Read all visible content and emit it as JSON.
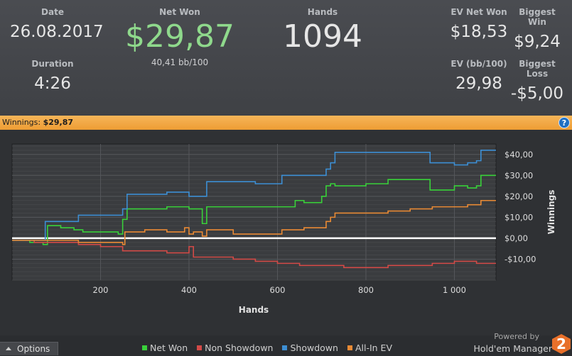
{
  "stats": {
    "date_label": "Date",
    "date_value": "26.08.2017",
    "duration_label": "Duration",
    "duration_value": "4:26",
    "net_won_label": "Net Won",
    "net_won_value": "$29,87",
    "net_won_sub": "40,41 bb/100",
    "hands_label": "Hands",
    "hands_value": "1094",
    "ev_net_won_label": "EV Net Won",
    "ev_net_won_value": "$18,53",
    "biggest_win_label": "Biggest Win",
    "biggest_win_value": "$9,24",
    "ev_bb_label": "EV (bb/100)",
    "ev_bb_value": "29,98",
    "biggest_loss_label": "Biggest Loss",
    "biggest_loss_value": "-$5,00"
  },
  "winbar": {
    "label": "Winnings:",
    "value": "$29,87",
    "help": "?"
  },
  "options": {
    "label": "Options"
  },
  "brand": {
    "powered": "Powered by",
    "name": "Hold'em Manager",
    "logo": "2"
  },
  "colors": {
    "net_won": "#39d13a",
    "non_showdown": "#d34a47",
    "showdown": "#3d8fd4",
    "allin_ev": "#e98a35"
  },
  "chart_data": {
    "type": "line",
    "xlabel": "Hands",
    "ylabel": "Winnings",
    "xlim": [
      0,
      1094
    ],
    "ylim": [
      -20,
      45
    ],
    "x_ticks": [
      200,
      400,
      600,
      800,
      1000
    ],
    "x_tick_labels": [
      "200",
      "400",
      "600",
      "800",
      "1 000"
    ],
    "y_ticks": [
      -10,
      0,
      10,
      20,
      30,
      40
    ],
    "y_tick_labels": [
      "-$10,00",
      "$0,00",
      "$10,00",
      "$20,00",
      "$30,00",
      "$40,00"
    ],
    "legend_position": "bottom",
    "series": [
      {
        "name": "Net Won",
        "color": "#39d13a",
        "x": [
          0,
          40,
          70,
          80,
          110,
          140,
          160,
          200,
          240,
          250,
          260,
          300,
          350,
          400,
          430,
          440,
          500,
          550,
          600,
          610,
          640,
          660,
          700,
          710,
          720,
          730,
          800,
          850,
          900,
          940,
          945,
          1000,
          1030,
          1050,
          1060,
          1094
        ],
        "y": [
          -1,
          -2,
          -3,
          6,
          5,
          4,
          3,
          3,
          2,
          9,
          14,
          14,
          15,
          14,
          7,
          15,
          15,
          15,
          15,
          15,
          18,
          17,
          20,
          25,
          26,
          25,
          26,
          28,
          28,
          28,
          23,
          25,
          24,
          25,
          30,
          30
        ]
      },
      {
        "name": "Non Showdown",
        "color": "#d34a47",
        "x": [
          0,
          50,
          100,
          150,
          200,
          250,
          300,
          350,
          390,
          400,
          410,
          500,
          550,
          600,
          650,
          700,
          750,
          800,
          850,
          900,
          950,
          1000,
          1050,
          1094
        ],
        "y": [
          -1,
          -2,
          -2,
          -3,
          -4,
          -6,
          -6,
          -7,
          -7,
          -4,
          -9,
          -10,
          -11,
          -12,
          -13,
          -13,
          -14,
          -14,
          -13,
          -13,
          -12,
          -11,
          -12,
          -12
        ]
      },
      {
        "name": "Showdown",
        "color": "#3d8fd4",
        "x": [
          0,
          60,
          75,
          100,
          140,
          150,
          200,
          240,
          250,
          260,
          300,
          350,
          400,
          430,
          440,
          500,
          550,
          600,
          610,
          640,
          660,
          700,
          710,
          720,
          730,
          800,
          850,
          900,
          940,
          945,
          1000,
          1030,
          1050,
          1060,
          1094
        ],
        "y": [
          -1,
          -1,
          8,
          8,
          8,
          11,
          11,
          11,
          14,
          21,
          21,
          22,
          20,
          20,
          27,
          27,
          26,
          26,
          30,
          30,
          30,
          30,
          33,
          36,
          41,
          41,
          41,
          41,
          41,
          36,
          35,
          36,
          37,
          42,
          42
        ]
      },
      {
        "name": "All-In EV",
        "color": "#e98a35",
        "x": [
          0,
          50,
          100,
          150,
          200,
          250,
          255,
          300,
          350,
          390,
          400,
          410,
          430,
          440,
          500,
          550,
          600,
          610,
          640,
          660,
          700,
          710,
          720,
          730,
          800,
          850,
          900,
          950,
          1000,
          1030,
          1050,
          1060,
          1094
        ],
        "y": [
          -1,
          -1,
          -1,
          -2,
          -2,
          -3,
          3,
          4,
          3,
          5,
          2,
          3,
          1,
          4,
          2,
          2,
          2,
          4,
          4,
          5,
          5,
          8,
          10,
          12,
          12,
          13,
          14,
          15,
          15,
          16,
          16,
          18,
          18
        ]
      }
    ]
  }
}
